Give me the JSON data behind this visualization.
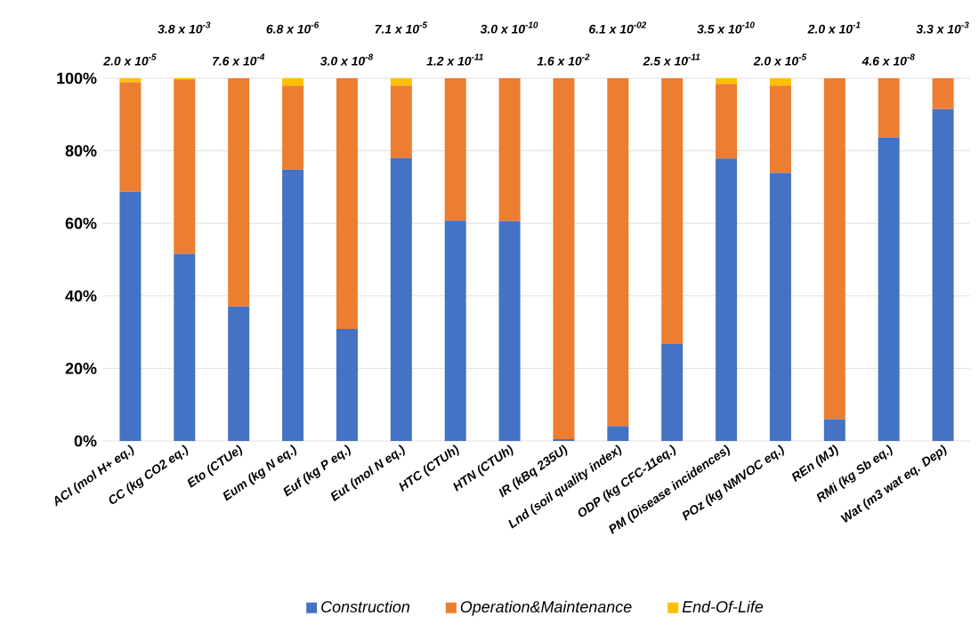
{
  "chart_data": {
    "type": "bar",
    "stacked": true,
    "categories": [
      "ACI (mol H+ eq.)",
      "CC (kg CO2 eq.)",
      "Eto (CTUe)",
      "Eum (kg N eq.)",
      "Euf (kg P eq.)",
      "Eut (mol N eq.)",
      "HTC (CTUh)",
      "HTN (CTUh)",
      "IR (kBq 235U)",
      "Lnd (soil quality index)",
      "ODP (kg CFC-11eq.)",
      "PM (Disease incidences)",
      "POz (kg NMVOC eq.)",
      "REn (MJ)",
      "RMi (kg Sb eq.)",
      "Wat (m3 wat eq. Dep)"
    ],
    "series": [
      {
        "name": "Construction",
        "color": "#4472c4",
        "values": [
          68.7,
          51.6,
          37.1,
          74.8,
          30.9,
          78.0,
          60.7,
          60.6,
          0.5,
          4.1,
          26.7,
          77.9,
          73.9,
          6.0,
          83.7,
          91.5
        ]
      },
      {
        "name": "Operation&Maintenance",
        "color": "#ed7d31",
        "values": [
          30.2,
          48.1,
          62.9,
          23.2,
          69.1,
          20.0,
          39.3,
          39.4,
          99.5,
          95.9,
          73.3,
          20.5,
          24.1,
          94.0,
          16.3,
          8.5
        ]
      },
      {
        "name": "End-Of-Life",
        "color": "#ffc000",
        "values": [
          1.1,
          0.3,
          0,
          2.0,
          0,
          2.0,
          0,
          0,
          0,
          0,
          0,
          1.6,
          2.0,
          0,
          0,
          0
        ]
      }
    ],
    "annotations": [
      "2.0 x 10$^{-5}$",
      "3.8 x 10$^{-3}$",
      "7.6 x 10$^{-4}$",
      "6.8 x 10$^{-6}$",
      "3.0 x 10$^{-8}$",
      "7.1 x 10$^{-5}$",
      "1.2 x 10$^{-11}$",
      "3.0 x 10$^{-10}$",
      "1.6 x 10$^{-2}$",
      "6.1 x 10$^{-02}$",
      "2.5 x 10$^{-11}$",
      "3.5 x 10$^{-10}$",
      "2.0 x 10$^{-5}$",
      "2.0 x 10$^{-1}$",
      "4.6 x 10$^{-8}$",
      "3.3 x 10$^{-3}$"
    ],
    "ylim": [
      0,
      100
    ],
    "yticks": [
      {
        "value": 0,
        "label": "0%"
      },
      {
        "value": 20,
        "label": "20%"
      },
      {
        "value": 40,
        "label": "40%"
      },
      {
        "value": 60,
        "label": "60%"
      },
      {
        "value": 80,
        "label": "80%"
      },
      {
        "value": 100,
        "label": "100%"
      }
    ],
    "grid": "y",
    "legend": "bottom"
  }
}
